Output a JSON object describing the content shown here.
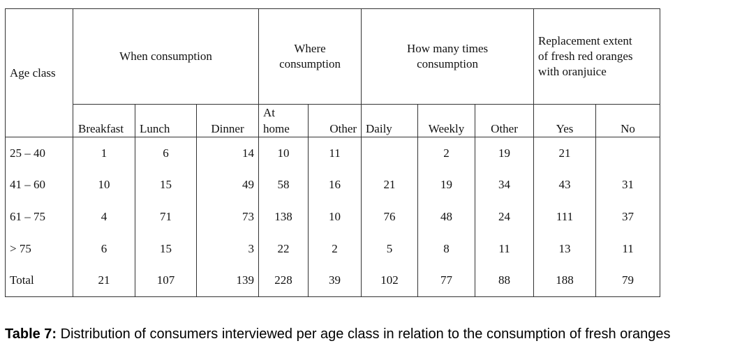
{
  "table": {
    "headers": {
      "age_class": "Age class",
      "when": "When consumption",
      "where": "Where\nconsumption",
      "how_many": "How many times\nconsumption",
      "replacement": "Replacement extent\nof fresh red oranges\nwith oranjuice"
    },
    "subheaders": {
      "breakfast": "Breakfast",
      "lunch": "Lunch",
      "dinner": "Dinner",
      "at_home": "At\nhome",
      "other_where": "Other",
      "daily": "Daily",
      "weekly": "Weekly",
      "other_times": "Other",
      "yes": "Yes",
      "no": "No"
    },
    "rows": [
      {
        "age": "25 – 40",
        "breakfast": "1",
        "lunch": "6",
        "dinner": "14",
        "at_home": "10",
        "other_where": "11",
        "daily": "",
        "weekly": "2",
        "other_times": "19",
        "yes": "21",
        "no": ""
      },
      {
        "age": "41 – 60",
        "breakfast": "10",
        "lunch": "15",
        "dinner": "49",
        "at_home": "58",
        "other_where": "16",
        "daily": "21",
        "weekly": "19",
        "other_times": "34",
        "yes": "43",
        "no": "31"
      },
      {
        "age": "61 – 75",
        "breakfast": "4",
        "lunch": "71",
        "dinner": "73",
        "at_home": "138",
        "other_where": "10",
        "daily": "76",
        "weekly": "48",
        "other_times": "24",
        "yes": "111",
        "no": "37"
      },
      {
        "age": "> 75",
        "breakfast": "6",
        "lunch": "15",
        "dinner": "3",
        "at_home": "22",
        "other_where": "2",
        "daily": "5",
        "weekly": "8",
        "other_times": "11",
        "yes": "13",
        "no": "11"
      },
      {
        "age": "Total",
        "breakfast": "21",
        "lunch": "107",
        "dinner": "139",
        "at_home": "228",
        "other_where": "39",
        "daily": "102",
        "weekly": "77",
        "other_times": "88",
        "yes": "188",
        "no": "79"
      }
    ]
  },
  "caption": {
    "label": "Table 7:",
    "text": " Distribution of consumers interviewed per age class in relation to the consumption of fresh oranges"
  }
}
